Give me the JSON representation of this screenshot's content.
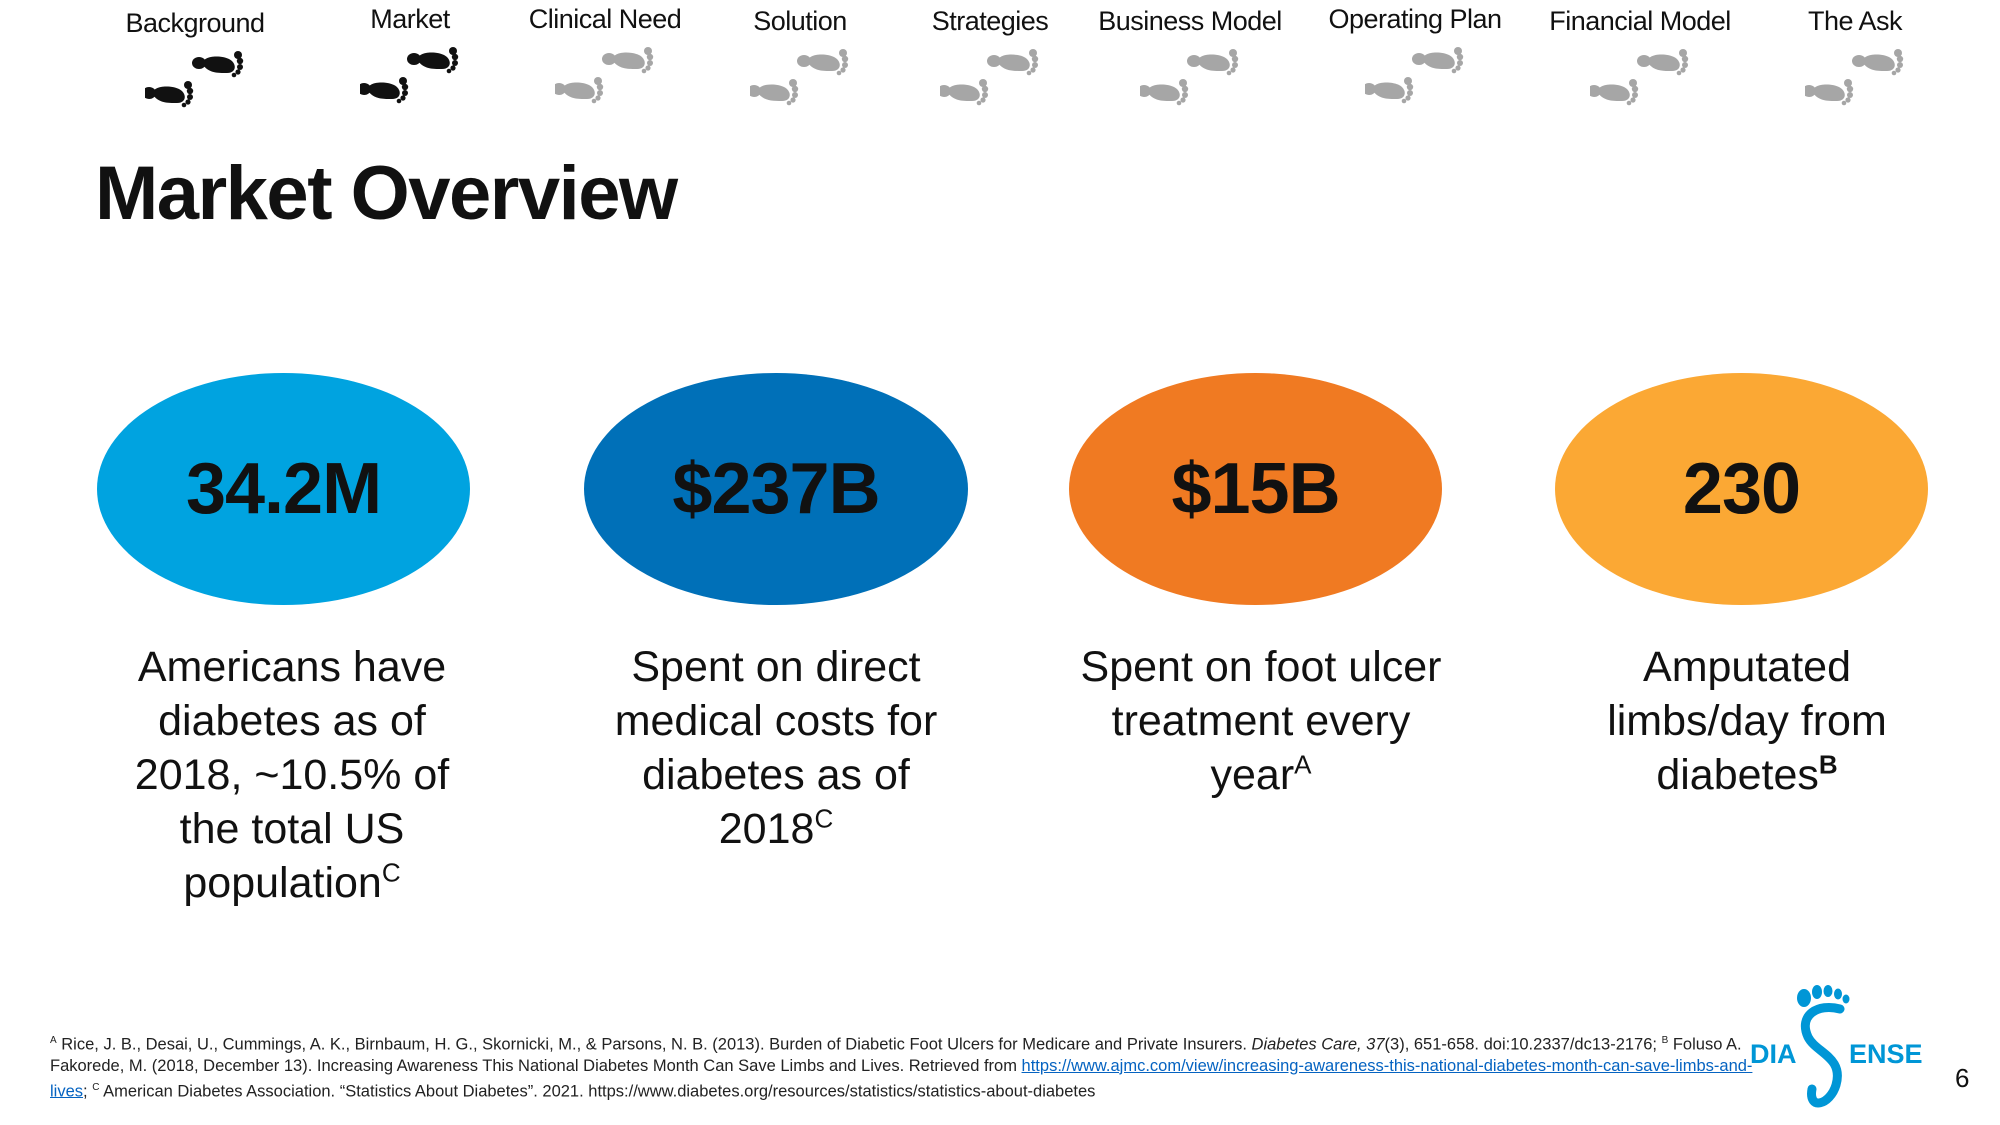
{
  "nav": {
    "items": [
      {
        "label": "Background",
        "state": "visited"
      },
      {
        "label": "Market",
        "state": "visited"
      },
      {
        "label": "Clinical Need",
        "state": "upcoming"
      },
      {
        "label": "Solution",
        "state": "upcoming"
      },
      {
        "label": "Strategies",
        "state": "upcoming"
      },
      {
        "label": "Business Model",
        "state": "upcoming"
      },
      {
        "label": "Operating Plan",
        "state": "upcoming"
      },
      {
        "label": "Financial Model",
        "state": "upcoming"
      },
      {
        "label": "The Ask",
        "state": "upcoming"
      }
    ],
    "icon": "footprints-icon",
    "colors": {
      "visited": "#111111",
      "upcoming": "#a6a6a6"
    }
  },
  "title": "Market Overview",
  "stats": [
    {
      "value": "34.2M",
      "color": "#00a3e0",
      "desc": "Americans have diabetes as of 2018, ~10.5% of the total US population",
      "ref": "C"
    },
    {
      "value": "$237B",
      "color": "#0070b8",
      "desc": "Spent on direct medical costs for diabetes as of 2018",
      "ref": "C"
    },
    {
      "value": "$15B",
      "color": "#f07a22",
      "desc": "Spent on foot ulcer treatment every year",
      "ref": "A"
    },
    {
      "value": "230",
      "color": "#fba834",
      "desc": "Amputated limbs/day from diabetes",
      "ref": "B"
    }
  ],
  "footnote": {
    "ref_a": "A",
    "text_a_pre": "Rice, J. B., Desai, U., Cummings, A. K., Birnbaum, H. G., Skornicki, M., & Parsons, N. B. (2013). Burden of Diabetic Foot Ulcers for Medicare and Private Insurers. ",
    "journal": "Diabetes Care, 37",
    "text_a_post": "(3), 651-658. doi:10.2337/dc13-2176; ",
    "ref_b": "B",
    "text_b": "Foluso A. Fakorede, M. (2018, December 13). Increasing Awareness This National Diabetes Month Can Save Limbs and Lives. Retrieved from ",
    "link": "https://www.ajmc.com/view/increasing-awareness-this-national-diabetes-month-can-save-limbs-and-lives",
    "sep": "; ",
    "ref_c": "C",
    "text_c": "American Diabetes Association. “Statistics About Diabetes”. 2021. https://www.diabetes.org/resources/statistics/statistics-about-diabetes"
  },
  "logo": {
    "left_text": "DIA",
    "right_text": "ENSE",
    "color": "#0096d6"
  },
  "page_number": "6"
}
